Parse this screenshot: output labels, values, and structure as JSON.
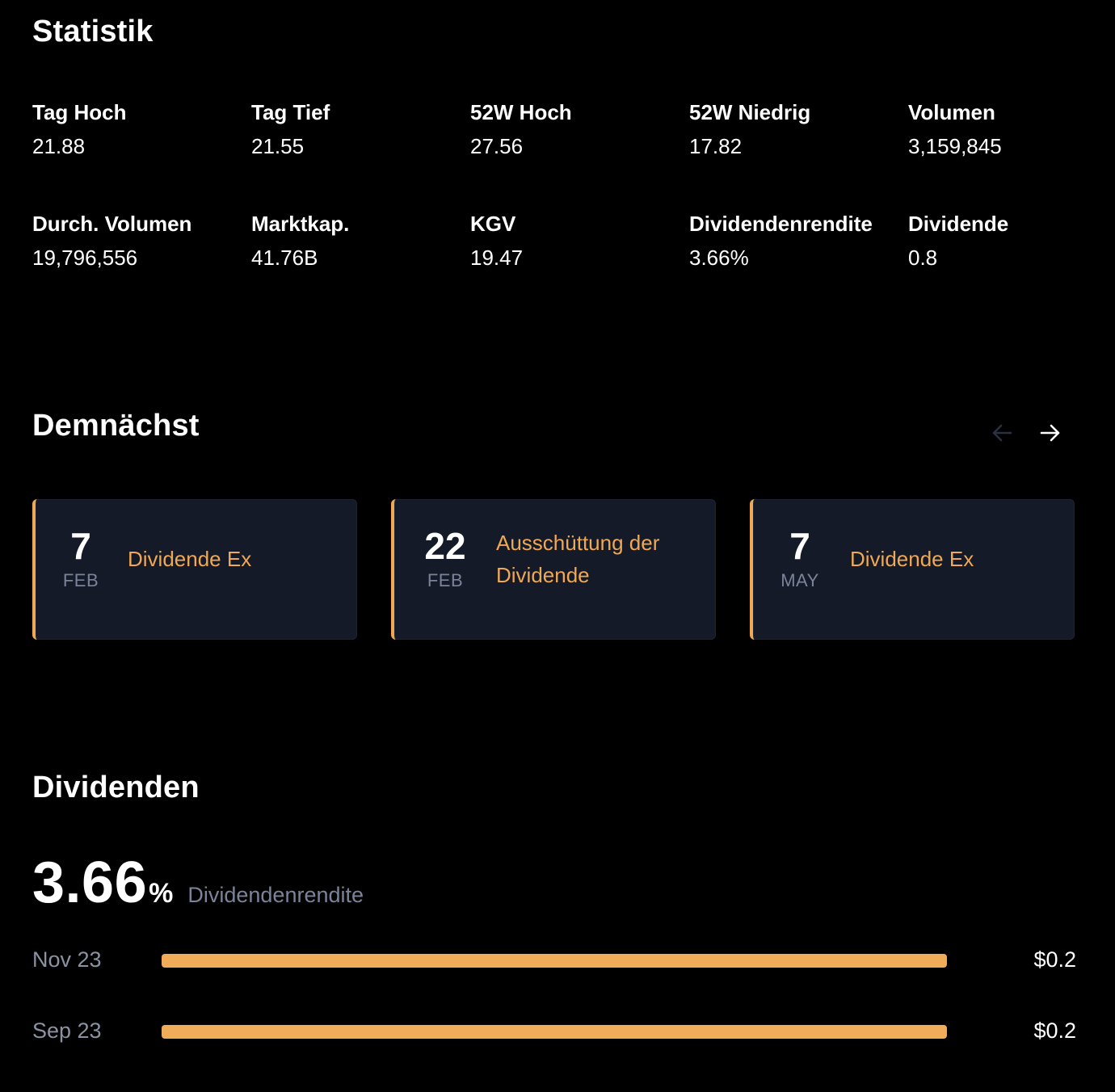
{
  "statistik": {
    "title": "Statistik",
    "items": [
      {
        "label": "Tag Hoch",
        "value": "21.88"
      },
      {
        "label": "Tag Tief",
        "value": "21.55"
      },
      {
        "label": "52W Hoch",
        "value": "27.56"
      },
      {
        "label": "52W Niedrig",
        "value": "17.82"
      },
      {
        "label": "Volumen",
        "value": "3,159,845"
      },
      {
        "label": "Durch. Volumen",
        "value": "19,796,556"
      },
      {
        "label": "Marktkap.",
        "value": "41.76B"
      },
      {
        "label": "KGV",
        "value": "19.47"
      },
      {
        "label": "Dividendenrendite",
        "value": "3.66%"
      },
      {
        "label": "Dividende",
        "value": "0.8"
      }
    ]
  },
  "demnaechst": {
    "title": "Demnächst",
    "prev_enabled": false,
    "next_enabled": true,
    "events": [
      {
        "day": "7",
        "month": "FEB",
        "label": "Dividende Ex"
      },
      {
        "day": "22",
        "month": "FEB",
        "label": "Ausschüttung der Dividende"
      },
      {
        "day": "7",
        "month": "MAY",
        "label": "Dividende Ex"
      }
    ]
  },
  "dividenden": {
    "title": "Dividenden",
    "yield_value": "3.66",
    "yield_unit": "%",
    "yield_caption": "Dividendenrendite",
    "rows": [
      {
        "date": "Nov 23",
        "amount": "$0.2",
        "fraction": 1.0
      },
      {
        "date": "Sep 23",
        "amount": "$0.2",
        "fraction": 1.0
      }
    ]
  },
  "colors": {
    "background": "#000000",
    "accent": "#f0a853",
    "card_background": "#141a28",
    "muted_text": "#7b8398"
  },
  "icons": {
    "prev": "arrow-left-icon",
    "next": "arrow-right-icon"
  }
}
